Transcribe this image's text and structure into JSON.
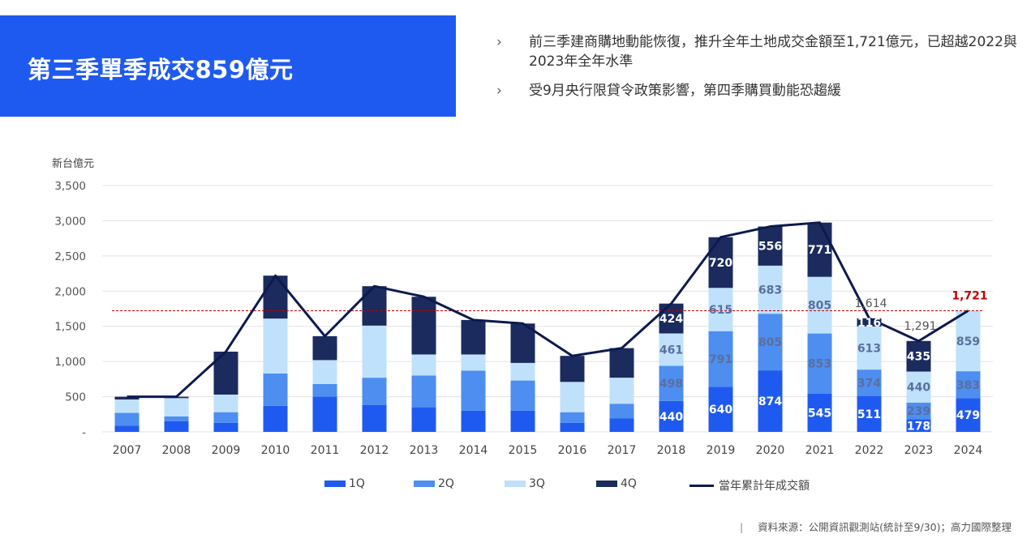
{
  "header": {
    "title": "第三季單季成交859億元",
    "bullets": [
      "前三季建商購地動能恢復，推升全年土地成交金額至1,721億元，已超越2022與2023年全年水準",
      "受9月央行限貸令政策影響，第四季購買動能恐趨緩"
    ],
    "bullet_mark": "›"
  },
  "chart_data": {
    "type": "bar",
    "stacked": true,
    "ylabel": "新台億元",
    "ylim": [
      0,
      3500
    ],
    "yticks": [
      0,
      500,
      1000,
      1500,
      2000,
      2500,
      3000,
      3500
    ],
    "ytick_labels": [
      "-",
      "500",
      "1,000",
      "1,500",
      "2,000",
      "2,500",
      "3,000",
      "3,500"
    ],
    "categories": [
      "2007",
      "2008",
      "2009",
      "2010",
      "2011",
      "2012",
      "2013",
      "2014",
      "2015",
      "2016",
      "2017",
      "2018",
      "2019",
      "2020",
      "2021",
      "2022",
      "2023",
      "2024"
    ],
    "series": [
      {
        "name": "1Q",
        "color": "#1f5af0",
        "values": [
          90,
          150,
          130,
          370,
          500,
          380,
          350,
          300,
          300,
          130,
          190,
          440,
          640,
          874,
          545,
          511,
          178,
          479
        ]
      },
      {
        "name": "2Q",
        "color": "#4d8ef0",
        "values": [
          180,
          70,
          150,
          460,
          180,
          390,
          450,
          570,
          430,
          150,
          210,
          498,
          791,
          805,
          853,
          374,
          239,
          383
        ]
      },
      {
        "name": "3Q",
        "color": "#bfe1fb",
        "values": [
          190,
          260,
          250,
          780,
          340,
          740,
          300,
          230,
          250,
          430,
          370,
          461,
          615,
          683,
          805,
          613,
          440,
          859
        ]
      },
      {
        "name": "4Q",
        "color": "#1b2b5e",
        "values": [
          40,
          20,
          610,
          610,
          340,
          560,
          820,
          490,
          560,
          370,
          420,
          424,
          720,
          556,
          771,
          116,
          435,
          0
        ]
      }
    ],
    "line": {
      "name": "當年累計年成交額",
      "color": "#0d1a4f",
      "values": [
        500,
        500,
        1140,
        2220,
        1360,
        2070,
        1920,
        1590,
        1540,
        1080,
        1190,
        1823,
        2766,
        2918,
        2974,
        1614,
        1291,
        1721
      ]
    },
    "segment_labels": [
      {
        "index": 11,
        "values": [
          "440",
          "498",
          "461",
          "424"
        ]
      },
      {
        "index": 12,
        "values": [
          "640",
          "791",
          "615",
          "720"
        ]
      },
      {
        "index": 13,
        "values": [
          "874",
          "805",
          "683",
          "556"
        ]
      },
      {
        "index": 14,
        "values": [
          "545",
          "853",
          "805",
          "771"
        ]
      },
      {
        "index": 15,
        "values": [
          "511",
          "374",
          "613",
          "116"
        ]
      },
      {
        "index": 16,
        "values": [
          "178",
          "239",
          "440",
          "435"
        ]
      },
      {
        "index": 17,
        "values": [
          "479",
          "383",
          "859",
          ""
        ]
      }
    ],
    "total_labels": [
      {
        "index": 15,
        "text": "1,614",
        "color": "#555555"
      },
      {
        "index": 16,
        "text": "1,291",
        "color": "#555555"
      },
      {
        "index": 17,
        "text": "1,721",
        "color": "#c00000"
      }
    ],
    "reference_line": {
      "value": 1721,
      "color": "#c00000",
      "style": "dashed"
    },
    "grid": true,
    "legend": "bottom"
  },
  "source": "資料來源：公開資訊觀測站(統計至9/30)；高力國際整理",
  "source_divider": "|"
}
